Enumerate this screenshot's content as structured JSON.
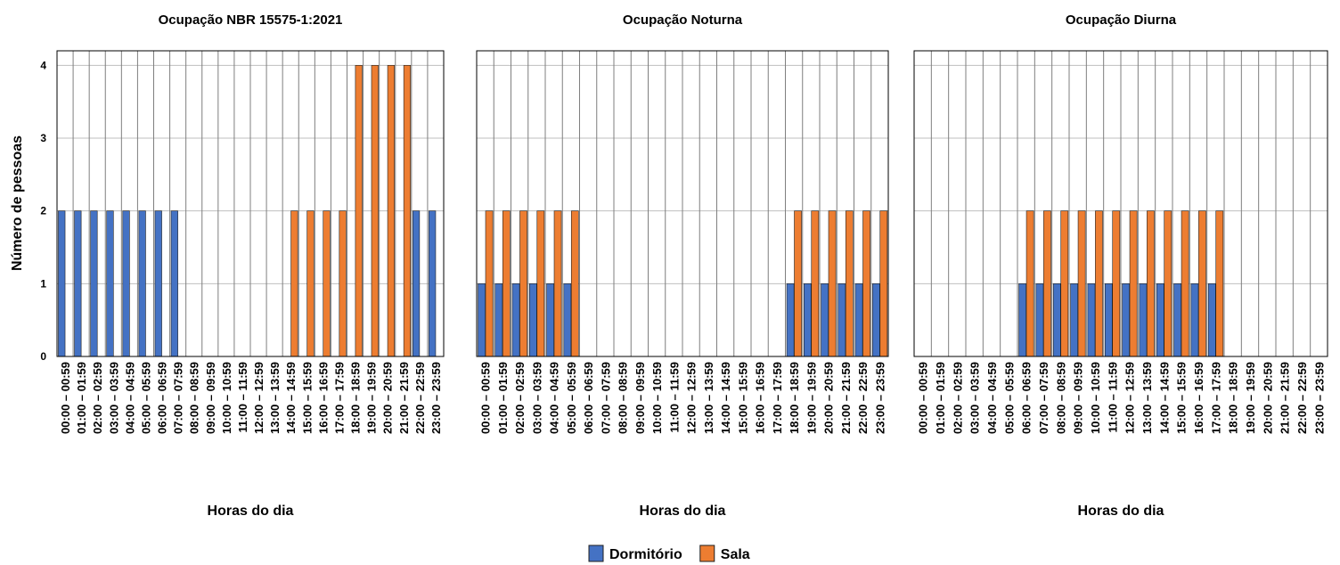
{
  "chart_data": [
    {
      "type": "bar",
      "title": "Ocupação NBR 15575-1:2021",
      "xlabel": "Horas do dia",
      "ylabel": "Número de pessoas",
      "categories": [
        "00:00 – 00:59",
        "01:00 – 01:59",
        "02:00 – 02:59",
        "03:00 – 03:59",
        "04:00 – 04:59",
        "05:00 – 05:59",
        "06:00 – 06:59",
        "07:00 – 07:59",
        "08:00 – 08:59",
        "09:00 – 09:59",
        "10:00 – 10:59",
        "11:00 – 11:59",
        "12:00 – 12:59",
        "13:00 – 13:59",
        "14:00 – 14:59",
        "15:00 – 15:59",
        "16:00 – 16:59",
        "17:00 – 17:59",
        "18:00 – 18:59",
        "19:00 – 19:59",
        "20:00 – 20:59",
        "21:00 – 21:59",
        "22:00 – 22:59",
        "23:00 – 23:59"
      ],
      "series": [
        {
          "name": "Dormitório",
          "color": "#4472c4",
          "values": [
            2,
            2,
            2,
            2,
            2,
            2,
            2,
            2,
            0,
            0,
            0,
            0,
            0,
            0,
            0,
            0,
            0,
            0,
            0,
            0,
            0,
            0,
            2,
            2
          ]
        },
        {
          "name": "Sala",
          "color": "#ed7d31",
          "values": [
            0,
            0,
            0,
            0,
            0,
            0,
            0,
            0,
            0,
            0,
            0,
            0,
            0,
            0,
            2,
            2,
            2,
            2,
            4,
            4,
            4,
            4,
            0,
            0
          ]
        }
      ],
      "ylim": [
        0,
        4.2
      ],
      "yticks": [
        0,
        1,
        2,
        3,
        4
      ],
      "show_ytick_labels": true,
      "grid": true
    },
    {
      "type": "bar",
      "title": "Ocupação Noturna",
      "xlabel": "Horas do dia",
      "categories": [
        "00:00 – 00:59",
        "01:00 – 01:59",
        "02:00 – 02:59",
        "03:00 – 03:59",
        "04:00 – 04:59",
        "05:00 – 05:59",
        "06:00 – 06:59",
        "07:00 – 07:59",
        "08:00 – 08:59",
        "09:00 – 09:59",
        "10:00 – 10:59",
        "11:00 – 11:59",
        "12:00 – 12:59",
        "13:00 – 13:59",
        "14:00 – 14:59",
        "15:00 – 15:59",
        "16:00 – 16:59",
        "17:00 – 17:59",
        "18:00 – 18:59",
        "19:00 – 19:59",
        "20:00 – 20:59",
        "21:00 – 21:59",
        "22:00 – 22:59",
        "23:00 – 23:59"
      ],
      "series": [
        {
          "name": "Dormitório",
          "color": "#4472c4",
          "values": [
            1,
            1,
            1,
            1,
            1,
            1,
            0,
            0,
            0,
            0,
            0,
            0,
            0,
            0,
            0,
            0,
            0,
            0,
            1,
            1,
            1,
            1,
            1,
            1
          ]
        },
        {
          "name": "Sala",
          "color": "#ed7d31",
          "values": [
            2,
            2,
            2,
            2,
            2,
            2,
            0,
            0,
            0,
            0,
            0,
            0,
            0,
            0,
            0,
            0,
            0,
            0,
            2,
            2,
            2,
            2,
            2,
            2
          ]
        }
      ],
      "ylim": [
        0,
        4.2
      ],
      "yticks": [
        0,
        1,
        2,
        3,
        4
      ],
      "show_ytick_labels": false,
      "grid": true
    },
    {
      "type": "bar",
      "title": "Ocupação Diurna",
      "xlabel": "Horas do dia",
      "categories": [
        "00:00 – 00:59",
        "01:00 – 01:59",
        "02:00 – 02:59",
        "03:00 – 03:59",
        "04:00 – 04:59",
        "05:00 – 05:59",
        "06:00 – 06:59",
        "07:00 – 07:59",
        "08:00 – 08:59",
        "09:00 – 09:59",
        "10:00 – 10:59",
        "11:00 – 11:59",
        "12:00 – 12:59",
        "13:00 – 13:59",
        "14:00 – 14:59",
        "15:00 – 15:59",
        "16:00 – 16:59",
        "17:00 – 17:59",
        "18:00 – 18:59",
        "19:00 – 19:59",
        "20:00 – 20:59",
        "21:00 – 21:59",
        "22:00 – 22:59",
        "23:00 – 23:59"
      ],
      "series": [
        {
          "name": "Dormitório",
          "color": "#4472c4",
          "values": [
            0,
            0,
            0,
            0,
            0,
            0,
            1,
            1,
            1,
            1,
            1,
            1,
            1,
            1,
            1,
            1,
            1,
            1,
            0,
            0,
            0,
            0,
            0,
            0
          ]
        },
        {
          "name": "Sala",
          "color": "#ed7d31",
          "values": [
            0,
            0,
            0,
            0,
            0,
            0,
            2,
            2,
            2,
            2,
            2,
            2,
            2,
            2,
            2,
            2,
            2,
            2,
            0,
            0,
            0,
            0,
            0,
            0
          ]
        }
      ],
      "ylim": [
        0,
        4.2
      ],
      "yticks": [
        0,
        1,
        2,
        3,
        4
      ],
      "show_ytick_labels": false,
      "grid": true
    }
  ]
}
